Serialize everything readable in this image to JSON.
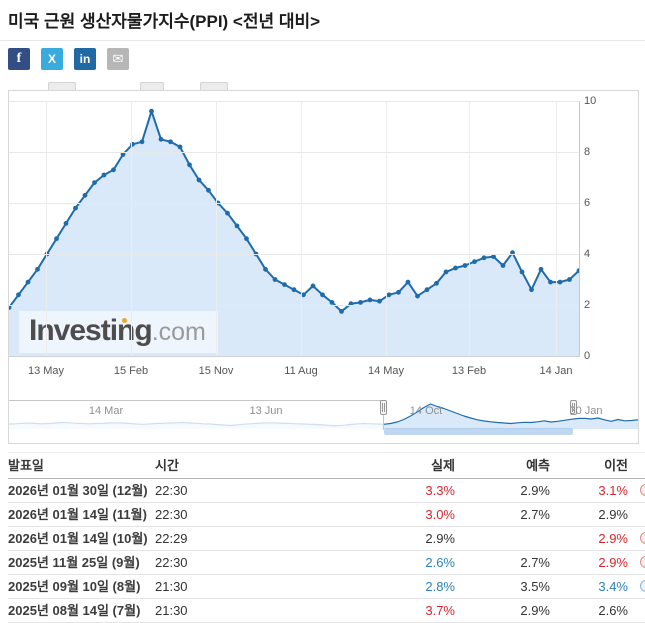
{
  "page": {
    "title": "미국 근원 생산자물가지수(PPI) <전년 대비>"
  },
  "share": {
    "facebook": "f",
    "x": "X",
    "linkedin": "in",
    "email": "✉"
  },
  "colors": {
    "line": "#1f6cab",
    "fill": "#d9e9f9",
    "red": "#d8262c",
    "blue": "#2980ba"
  },
  "chart_data": {
    "type": "area",
    "title": "미국 근원 생산자물가지수(PPI) 전년 대비",
    "ylabel": "%",
    "ylim": [
      0,
      10
    ],
    "y_ticks": [
      0,
      2,
      4,
      6,
      8,
      10
    ],
    "x_ticks": [
      "13 May",
      "15 Feb",
      "15 Nov",
      "11 Aug",
      "14 May",
      "13 Feb",
      "14 Jan"
    ],
    "x_tick_pos": [
      0.065,
      0.214,
      0.363,
      0.512,
      0.661,
      0.807,
      0.96
    ],
    "grid": true,
    "legend": "none",
    "values": [
      1.9,
      2.4,
      2.9,
      3.4,
      4.0,
      4.6,
      5.2,
      5.8,
      6.3,
      6.8,
      7.1,
      7.3,
      7.9,
      8.3,
      8.4,
      9.6,
      8.5,
      8.4,
      8.2,
      7.5,
      6.9,
      6.5,
      6.0,
      5.6,
      5.1,
      4.6,
      4.0,
      3.4,
      3.0,
      2.8,
      2.6,
      2.4,
      2.75,
      2.4,
      2.1,
      1.75,
      2.05,
      2.1,
      2.2,
      2.15,
      2.4,
      2.5,
      2.9,
      2.35,
      2.6,
      2.85,
      3.3,
      3.45,
      3.55,
      3.7,
      3.85,
      3.9,
      3.55,
      4.05,
      3.3,
      2.6,
      3.4,
      2.9,
      2.9,
      3.0,
      3.35
    ],
    "navigator": {
      "labels": [
        "14 Mar",
        "13 Jun",
        "14 Oct",
        "30 Jan"
      ],
      "label_pos": [
        0.154,
        0.409,
        0.663,
        0.917
      ],
      "selection": [
        0.596,
        0.897
      ],
      "values": [
        1.6,
        1.7,
        1.9,
        2.0,
        1.8,
        1.7,
        1.8,
        2.0,
        2.2,
        2.1,
        1.9,
        1.8,
        1.7,
        1.8,
        1.9,
        2.0,
        2.1,
        2.0,
        1.8,
        1.6,
        1.5,
        1.6,
        1.8,
        1.9,
        2.0,
        2.1,
        2.2,
        2.0,
        1.9,
        1.7,
        1.6,
        1.4,
        1.2,
        1.0,
        1.2,
        1.5,
        1.7,
        1.9,
        2.0,
        2.1,
        2.0,
        1.9,
        1.8,
        1.7,
        1.6,
        1.5,
        1.4,
        1.2,
        1.0,
        0.9,
        1.1,
        1.4,
        1.6,
        1.8,
        1.7,
        1.6,
        1.5,
        1.8,
        2.4,
        3.4,
        4.8,
        6.4,
        8.2,
        9.6,
        8.6,
        7.8,
        6.8,
        5.8,
        4.8,
        4.0,
        3.3,
        2.8,
        2.5,
        2.2,
        2.0,
        1.8,
        2.1,
        2.3,
        2.2,
        2.5,
        2.9,
        2.4,
        2.7,
        3.1,
        3.5,
        3.8,
        3.9,
        3.6,
        4.0,
        3.3,
        2.7,
        3.4,
        2.9,
        3.0,
        3.3
      ]
    },
    "watermark": {
      "brand": "Investing",
      "suffix": ".com"
    }
  },
  "table": {
    "headers": {
      "date": "발표일",
      "time": "시간",
      "actual": "실제",
      "forecast": "예측",
      "previous": "이전"
    },
    "rows": [
      {
        "date": "2026년 01월 30일 (12월)",
        "time": "22:30",
        "actual": "3.3%",
        "actual_color": "red",
        "forecast": "2.9%",
        "previous": "3.1%",
        "previous_color": "red",
        "revised": true
      },
      {
        "date": "2026년 01월 14일 (11월)",
        "time": "22:30",
        "actual": "3.0%",
        "actual_color": "red",
        "forecast": "2.7%",
        "previous": "2.9%",
        "previous_color": "neutral",
        "revised": false
      },
      {
        "date": "2026년 01월 14일 (10월)",
        "time": "22:29",
        "actual": "2.9%",
        "actual_color": "neutral",
        "forecast": "",
        "previous": "2.9%",
        "previous_color": "red",
        "revised": true
      },
      {
        "date": "2025년 11월 25일 (9월)",
        "time": "22:30",
        "actual": "2.6%",
        "actual_color": "blue",
        "forecast": "2.7%",
        "previous": "2.9%",
        "previous_color": "red",
        "revised": true
      },
      {
        "date": "2025년 09월 10일 (8월)",
        "time": "21:30",
        "actual": "2.8%",
        "actual_color": "blue",
        "forecast": "3.5%",
        "previous": "3.4%",
        "previous_color": "blue",
        "revised": true
      },
      {
        "date": "2025년 08월 14일 (7월)",
        "time": "21:30",
        "actual": "3.7%",
        "actual_color": "red",
        "forecast": "2.9%",
        "previous": "2.6%",
        "previous_color": "neutral",
        "revised": false
      }
    ]
  }
}
